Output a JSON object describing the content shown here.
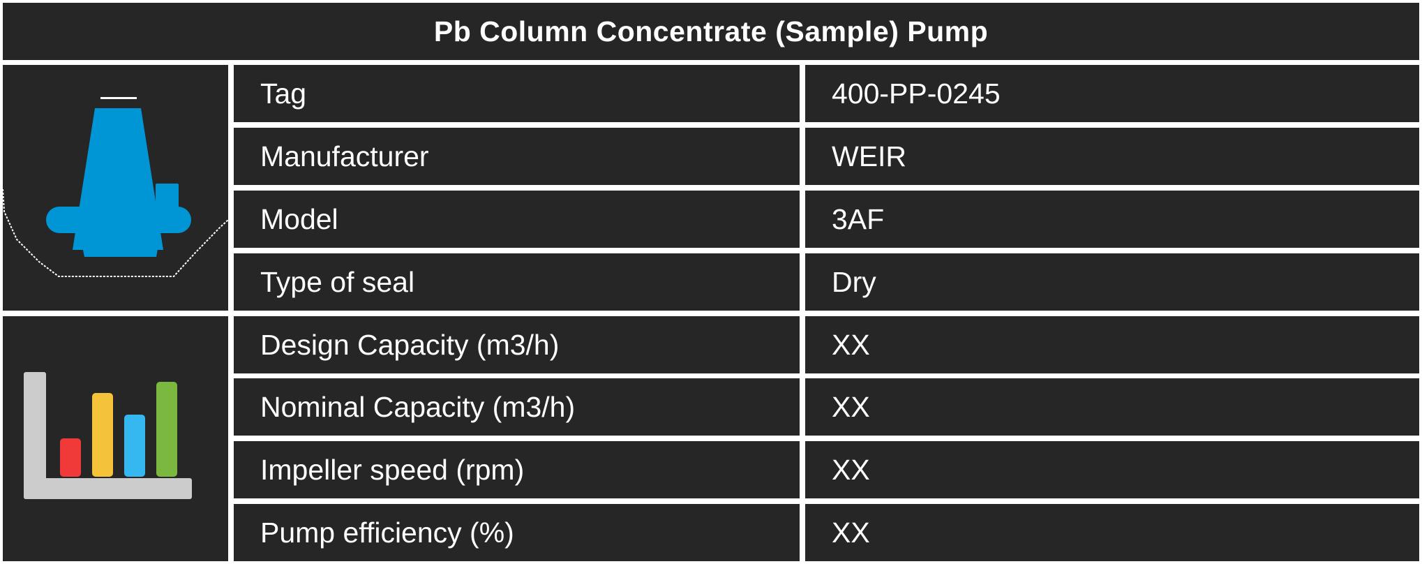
{
  "title": "Pb Column Concentrate (Sample) Pump",
  "sections": [
    {
      "icon": "pump-icon",
      "rows": [
        {
          "label": "Tag",
          "value": "400-PP-0245"
        },
        {
          "label": "Manufacturer",
          "value": "WEIR"
        },
        {
          "label": "Model",
          "value": "3AF"
        },
        {
          "label": "Type of seal",
          "value": "Dry"
        }
      ]
    },
    {
      "icon": "bar-chart-icon",
      "rows": [
        {
          "label": "Design Capacity (m3/h)",
          "value": "XX"
        },
        {
          "label": "Nominal Capacity (m3/h)",
          "value": "XX"
        },
        {
          "label": "Impeller speed (rpm)",
          "value": "XX"
        },
        {
          "label": "Pump efficiency (%)",
          "value": "XX"
        }
      ]
    }
  ],
  "colors": {
    "background": "#262626",
    "pump_blue": "#0096d6",
    "bar_red": "#f03a3a",
    "bar_yellow": "#f5c33a",
    "bar_blue": "#35b8f0",
    "bar_green": "#7ab840",
    "axis_gray": "#cccccc"
  }
}
